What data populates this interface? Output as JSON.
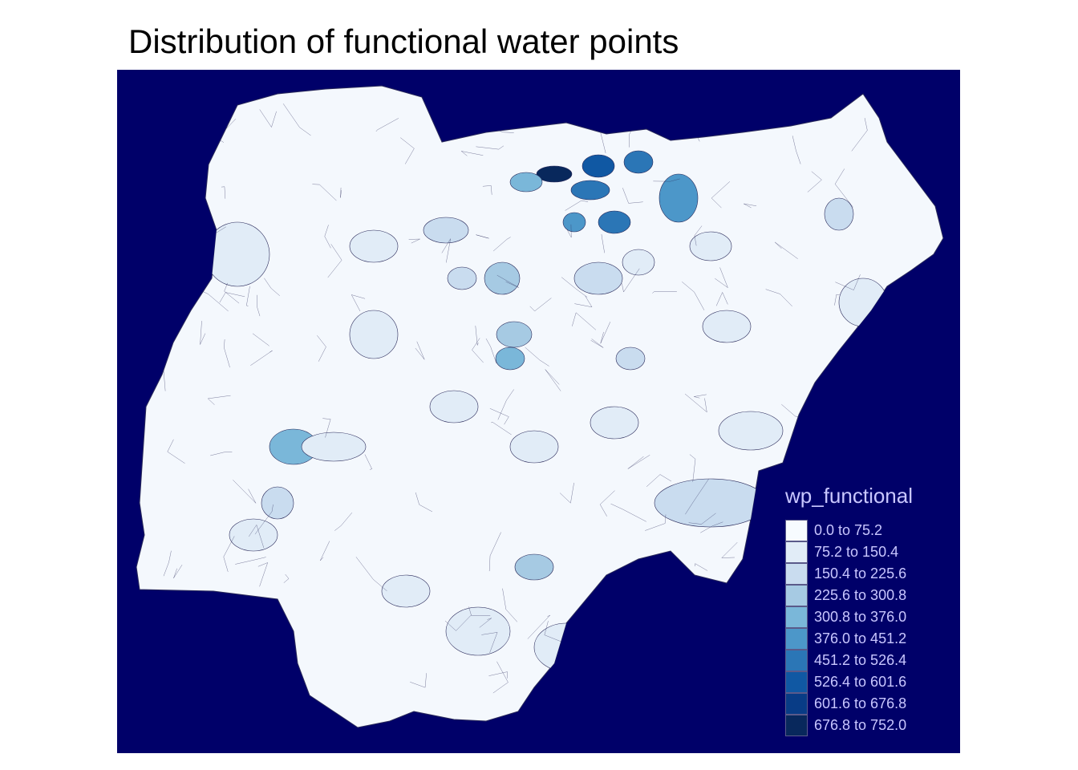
{
  "title": "Distribution of functional water points",
  "map": {
    "background_color": "#000069",
    "boundary_color": "#2a2a5a",
    "variable": "wp_functional"
  },
  "legend": {
    "title": "wp_functional",
    "items": [
      {
        "label": "0.0 to 75.2",
        "color": "#f7fbff"
      },
      {
        "label": "75.2 to 150.4",
        "color": "#e1ecf7"
      },
      {
        "label": "150.4 to 225.6",
        "color": "#c9dcef"
      },
      {
        "label": "225.6 to 300.8",
        "color": "#a6cae3"
      },
      {
        "label": "300.8 to 376.0",
        "color": "#7ab7d9"
      },
      {
        "label": "376.0 to 451.2",
        "color": "#4c97c9"
      },
      {
        "label": "451.2 to 526.4",
        "color": "#2b76b6"
      },
      {
        "label": "526.4 to 601.6",
        "color": "#1058a3"
      },
      {
        "label": "601.6 to 676.8",
        "color": "#083c86"
      },
      {
        "label": "676.8 to 752.0",
        "color": "#08285c"
      }
    ]
  }
}
